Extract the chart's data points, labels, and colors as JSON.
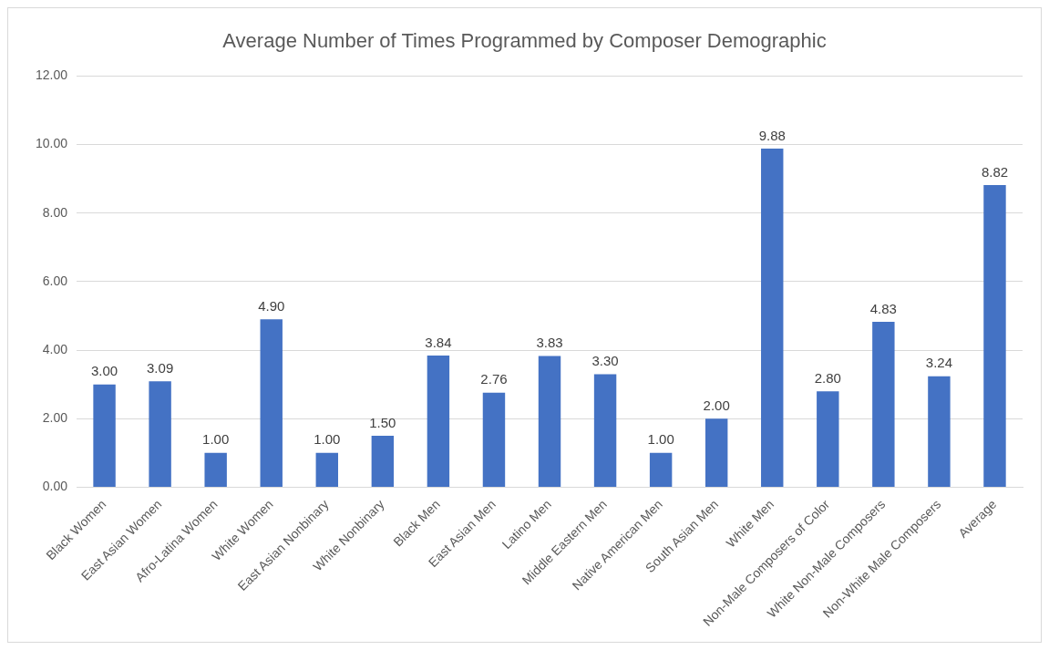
{
  "chart_data": {
    "type": "bar",
    "title": "Average Number of Times Programmed by Composer Demographic",
    "categories": [
      "Black Women",
      "East Asian Women",
      "Afro-Latina Women",
      "White Women",
      "East Asian Nonbinary",
      "White Nonbinary",
      "Black Men",
      "East Asian Men",
      "Latino Men",
      "Middle Eastern Men",
      "Native American Men",
      "South Asian Men",
      "White Men",
      "Non-Male Composers of Color",
      "White Non-Male Composers",
      "Non-White Male Composers",
      "Average"
    ],
    "values": [
      3.0,
      3.09,
      1.0,
      4.9,
      1.0,
      1.5,
      3.84,
      2.76,
      3.83,
      3.3,
      1.0,
      2.0,
      9.88,
      2.8,
      4.83,
      3.24,
      8.82
    ],
    "value_labels": [
      "3.00",
      "3.09",
      "1.00",
      "4.90",
      "1.00",
      "1.50",
      "3.84",
      "2.76",
      "3.83",
      "3.30",
      "1.00",
      "2.00",
      "9.88",
      "2.80",
      "4.83",
      "3.24",
      "8.82"
    ],
    "color": "#4472c4",
    "ylim": [
      0,
      12
    ],
    "yticks": [
      {
        "value": 0,
        "label": "0.00"
      },
      {
        "value": 2,
        "label": "2.00"
      },
      {
        "value": 4,
        "label": "4.00"
      },
      {
        "value": 6,
        "label": "6.00"
      },
      {
        "value": 8,
        "label": "8.00"
      },
      {
        "value": 10,
        "label": "10.00"
      },
      {
        "value": 12,
        "label": "12.00"
      }
    ],
    "grid": "y",
    "legend": false
  }
}
